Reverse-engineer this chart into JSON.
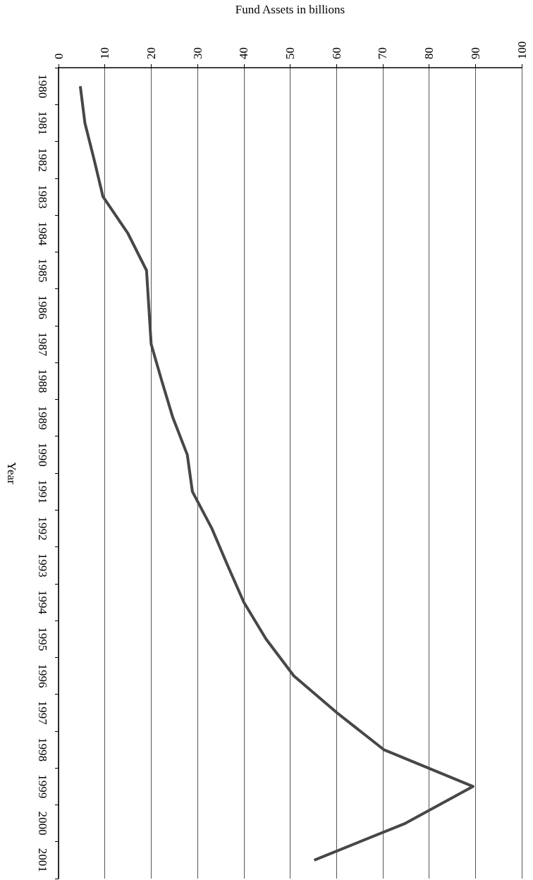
{
  "chart_data": {
    "type": "line",
    "orientation": "horizontal",
    "xlabel": "Fund Assets in billions",
    "ylabel": "Year",
    "categories": [
      "1980",
      "1981",
      "1982",
      "1983",
      "1984",
      "1985",
      "1986",
      "1987",
      "1988",
      "1989",
      "1990",
      "1991",
      "1992",
      "1993",
      "1994",
      "1995",
      "1996",
      "1997",
      "1998",
      "1999",
      "2000",
      "2001"
    ],
    "series": [
      {
        "color": "#474747",
        "values": [
          4.7,
          5.7,
          7.7,
          9.6,
          15.0,
          19.0,
          19.5,
          20.0,
          22.3,
          24.7,
          27.8,
          28.9,
          33.1,
          36.5,
          40.0,
          44.8,
          50.8,
          60.1,
          70.2,
          89.5,
          74.9,
          55.2
        ]
      }
    ],
    "xlim": [
      0,
      100
    ],
    "xticks": [
      0,
      10,
      20,
      30,
      40,
      50,
      60,
      70,
      80,
      90,
      100
    ],
    "grid": "x",
    "marker": "none",
    "line_style": "solid"
  }
}
